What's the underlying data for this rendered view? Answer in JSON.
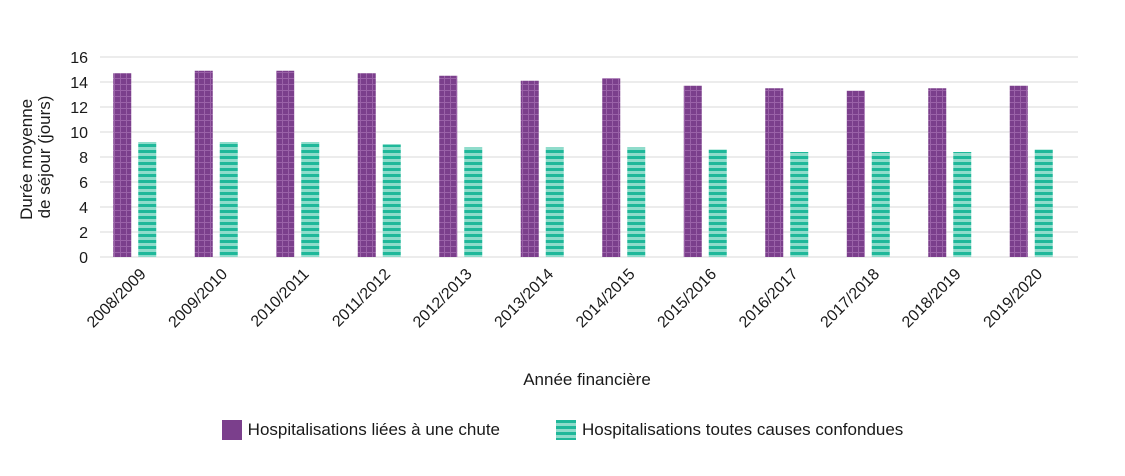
{
  "chart_data": {
    "type": "bar",
    "ylabel": [
      "Durée moyenne",
      "de séjour (jours)"
    ],
    "xlabel": "Année financière",
    "ylim": [
      0,
      16
    ],
    "yticks": [
      0,
      2,
      4,
      6,
      8,
      10,
      12,
      14,
      16
    ],
    "grid": true,
    "legend_position": "bottom",
    "categories": [
      "2008/2009",
      "2009/2010",
      "2010/2011",
      "2011/2012",
      "2012/2013",
      "2013/2014",
      "2014/2015",
      "2015/2016",
      "2016/2017",
      "2017/2018",
      "2018/2019",
      "2019/2020"
    ],
    "series": [
      {
        "name": "Hospitalisations liées à une chute",
        "color": "#7b3f8c",
        "values": [
          14.7,
          14.9,
          14.9,
          14.7,
          14.5,
          14.1,
          14.3,
          13.7,
          13.5,
          13.3,
          13.5,
          13.7
        ]
      },
      {
        "name": "Hospitalisations toutes causes confondues",
        "color": "#1fb89a",
        "values": [
          9.2,
          9.2,
          9.2,
          9.0,
          8.8,
          8.8,
          8.8,
          8.6,
          8.4,
          8.4,
          8.4,
          8.6
        ]
      }
    ]
  }
}
